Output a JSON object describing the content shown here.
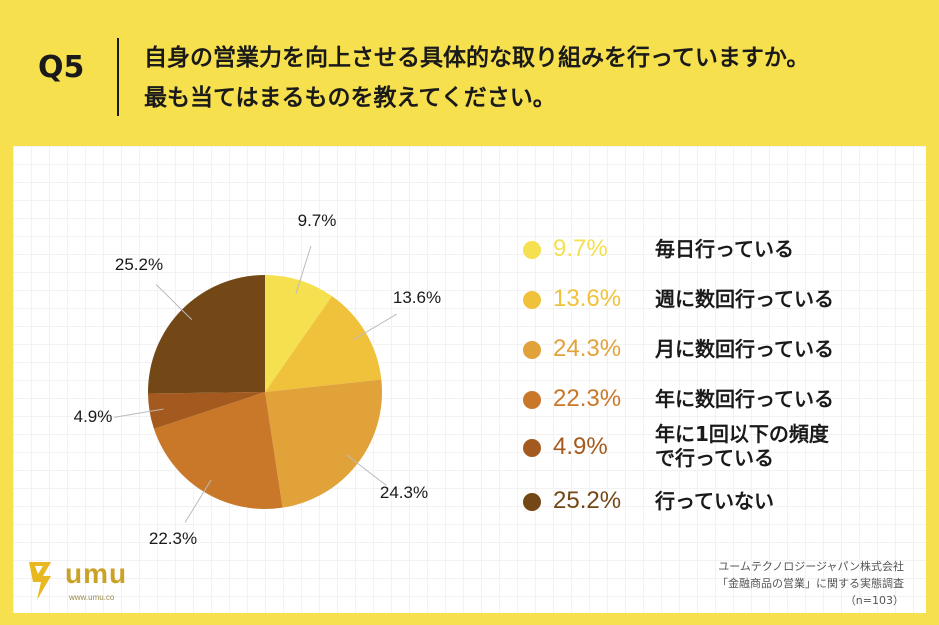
{
  "header": {
    "q_label": "Q5",
    "question_line1": "自身の営業力を向上させる具体的な取り組みを行っていますか。",
    "question_line2": "最も当てはまるものを教えてください。"
  },
  "chart_data": {
    "type": "pie",
    "categories": [
      "毎日行っている",
      "週に数回行っている",
      "月に数回行っている",
      "年に数回行っている",
      "年に1回以下の頻度で行っている",
      "行っていない"
    ],
    "values": [
      9.7,
      13.6,
      24.3,
      22.3,
      4.9,
      25.2
    ],
    "labels": [
      "9.7%",
      "13.6%",
      "24.3%",
      "22.3%",
      "4.9%",
      "25.2%"
    ],
    "colors": [
      "#f5e050",
      "#f0c23c",
      "#e2a23a",
      "#c9782a",
      "#a45a1e",
      "#744816"
    ],
    "legend_position": "right",
    "start_angle": "12 o'clock",
    "direction": "clockwise"
  },
  "legend": {
    "items": [
      {
        "pct": "9.7%",
        "text": "毎日行っている",
        "text2": ""
      },
      {
        "pct": "13.6%",
        "text": "週に数回行っている",
        "text2": ""
      },
      {
        "pct": "24.3%",
        "text": "月に数回行っている",
        "text2": ""
      },
      {
        "pct": "22.3%",
        "text": "年に数回行っている",
        "text2": ""
      },
      {
        "pct": "4.9%",
        "text": "年に1回以下の頻度",
        "text2": "で行っている"
      },
      {
        "pct": "25.2%",
        "text": "行っていない",
        "text2": ""
      }
    ]
  },
  "footer": {
    "company": "ユームテクノロジージャパン株式会社",
    "survey": "「金融商品の営業」に関する実態調査",
    "sample": "（n=103）"
  },
  "logo": {
    "name": "umu",
    "url": "www.umu.co"
  }
}
